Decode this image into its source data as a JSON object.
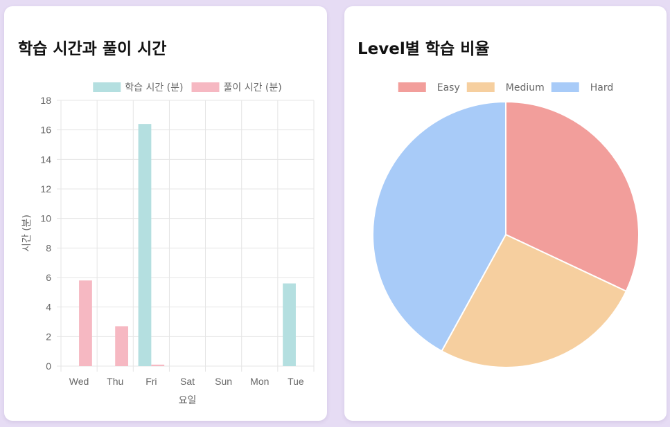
{
  "bar_card": {
    "title": "학습 시간과 풀이 시간"
  },
  "pie_card": {
    "title": "Level별 학습 비율"
  },
  "colors": {
    "page_background": "#e6dcf4",
    "card_background": "#ffffff",
    "study_time": "#b4dfe0",
    "solve_time": "#f6b8c2",
    "easy": "#f29e9b",
    "medium": "#f6cf9f",
    "hard": "#a8cbf8",
    "grid": "#e5e5e5",
    "text": "#666666"
  },
  "chart_data": [
    {
      "type": "bar",
      "title": "학습 시간과 풀이 시간",
      "categories": [
        "Wed",
        "Thu",
        "Fri",
        "Sat",
        "Sun",
        "Mon",
        "Tue"
      ],
      "series": [
        {
          "name": "학습 시간 (분)",
          "color": "#b4dfe0",
          "values": [
            0,
            0,
            16.4,
            0,
            0,
            0,
            5.6
          ]
        },
        {
          "name": "풀이 시간 (분)",
          "color": "#f6b8c2",
          "values": [
            5.8,
            2.7,
            0.1,
            0,
            0,
            0,
            0
          ]
        }
      ],
      "xlabel": "요일",
      "ylabel": "시간 (분)",
      "ylim": [
        0,
        18
      ],
      "yticks": [
        0,
        2,
        4,
        6,
        8,
        10,
        12,
        14,
        16,
        18
      ],
      "grid": true,
      "legend": "top"
    },
    {
      "type": "pie",
      "title": "Level별 학습 비율",
      "labels": [
        "Easy",
        "Medium",
        "Hard"
      ],
      "values": [
        32,
        26,
        42
      ],
      "colors": [
        "#f29e9b",
        "#f6cf9f",
        "#a8cbf8"
      ],
      "legend": "top"
    }
  ]
}
